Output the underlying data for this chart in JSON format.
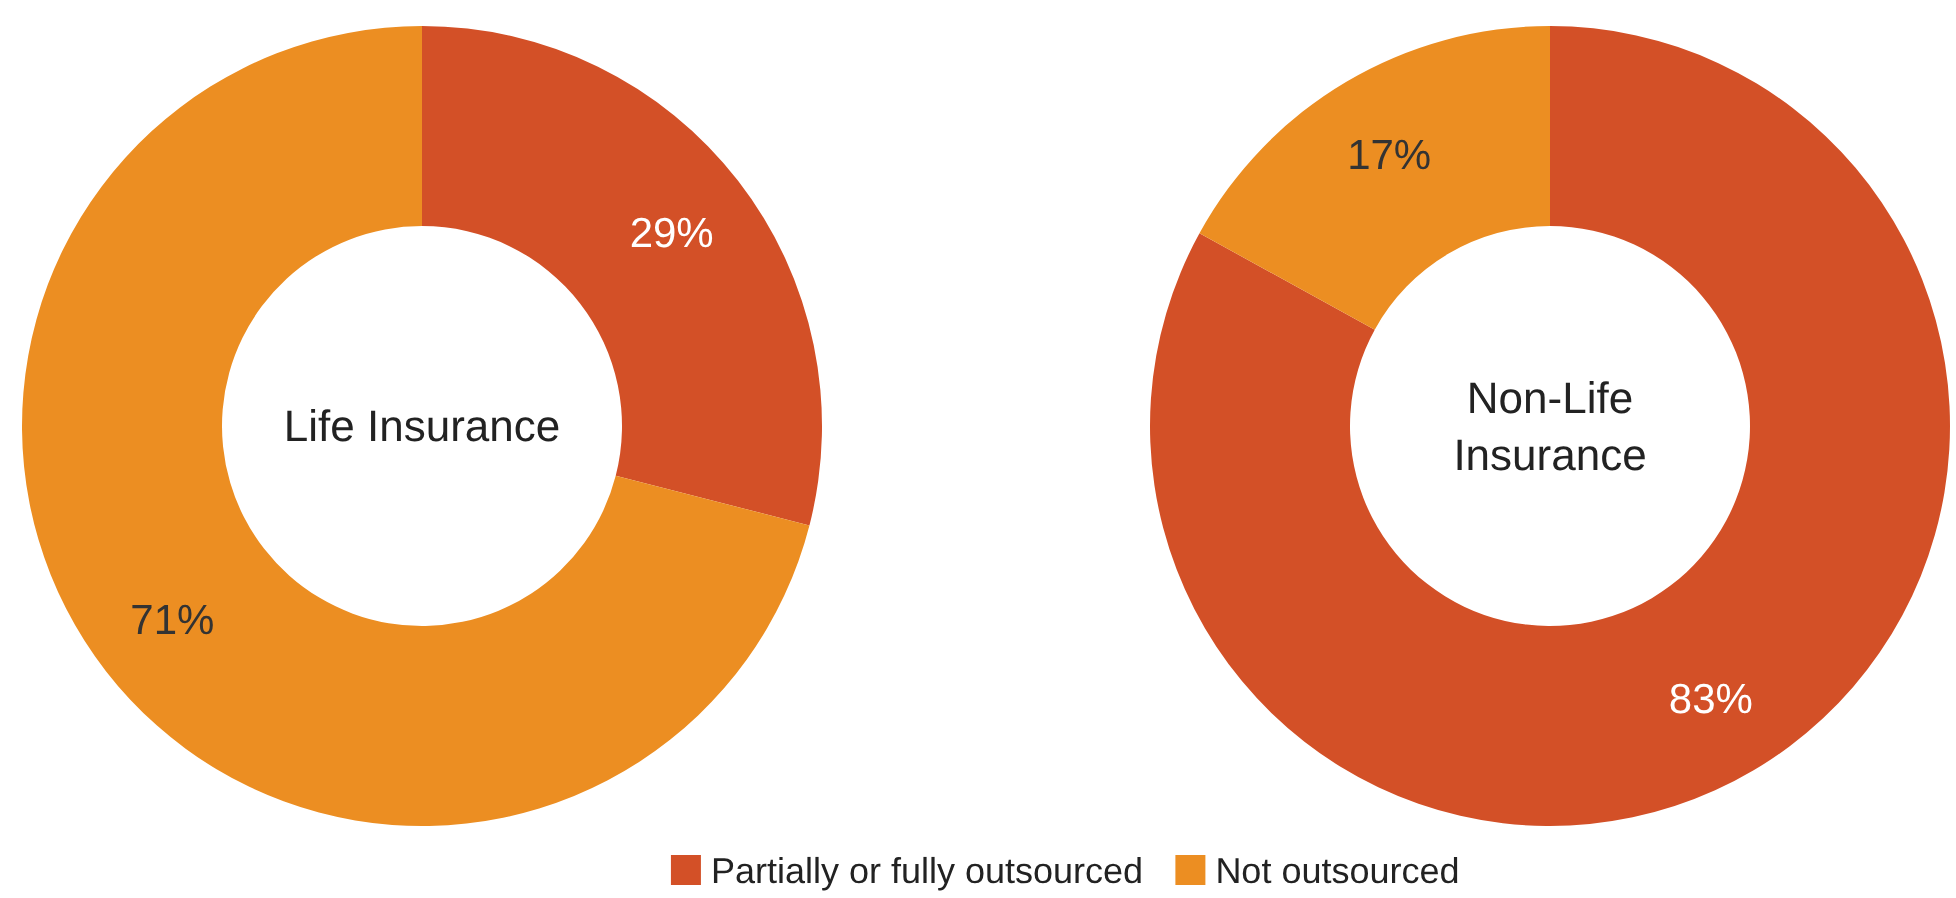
{
  "chart_data": [
    {
      "type": "donut",
      "title": "Life Insurance",
      "categories": [
        "Partially or fully outsourced",
        "Not outsourced"
      ],
      "values": [
        29,
        71
      ],
      "colors": [
        "#d35027",
        "#ec8e22"
      ],
      "value_labels": [
        "29%",
        "71%"
      ],
      "legend": "bottom"
    },
    {
      "type": "donut",
      "title": "Non-Life Insurance",
      "categories": [
        null,
        null
      ],
      "values": [
        83,
        17
      ],
      "colors": [
        "#d35027",
        "#ec8e22"
      ],
      "value_labels": [
        "83%",
        "17%"
      ]
    }
  ]
}
